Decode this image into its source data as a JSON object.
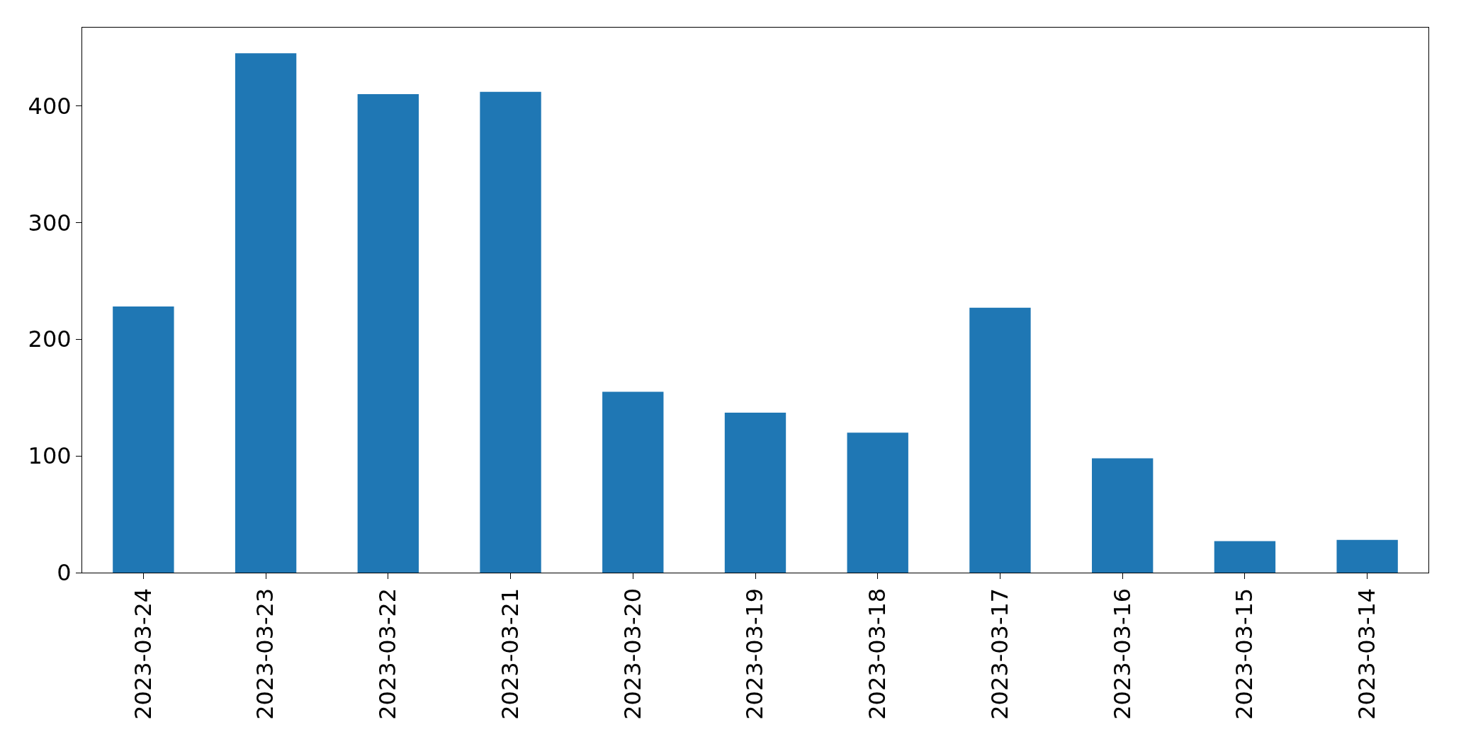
{
  "chart_data": {
    "type": "bar",
    "categories": [
      "2023-03-24",
      "2023-03-23",
      "2023-03-22",
      "2023-03-21",
      "2023-03-20",
      "2023-03-19",
      "2023-03-18",
      "2023-03-17",
      "2023-03-16",
      "2023-03-15",
      "2023-03-14"
    ],
    "values": [
      228,
      445,
      410,
      412,
      155,
      137,
      120,
      227,
      98,
      27,
      28
    ],
    "color": "#1f77b4",
    "ylim": [
      0,
      467
    ],
    "yticks": [
      0,
      100,
      200,
      300,
      400
    ],
    "legend": false
  }
}
